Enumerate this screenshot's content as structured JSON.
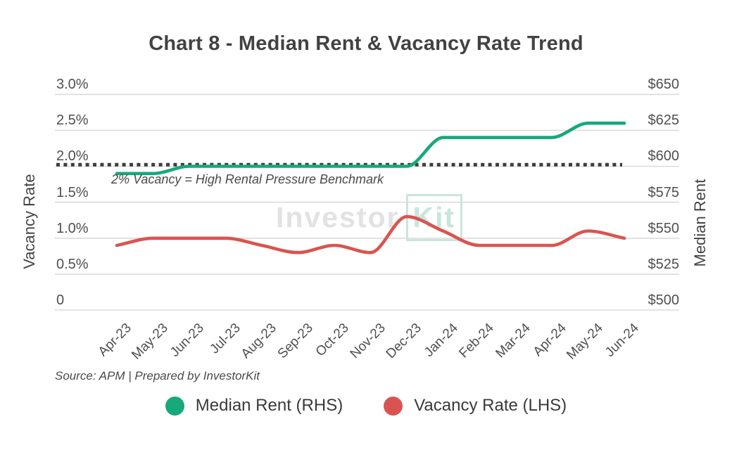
{
  "title": "Chart 8 - Median Rent & Vacancy Rate Trend",
  "watermark": {
    "part1": "Investor",
    "part2": "Kit"
  },
  "annotation": "2% Vacancy = High Rental Pressure Benchmark",
  "source": "Source: APM | Prepared by InvestorKit",
  "axes": {
    "left_title": "Vacancy Rate",
    "right_title": "Median Rent",
    "left_ticks": [
      "3.0%",
      "2.5%",
      "2.0%",
      "1.5%",
      "1.0%",
      "0.5%",
      "0"
    ],
    "right_ticks": [
      "$650",
      "$625",
      "$600",
      "$575",
      "$550",
      "$525",
      "$500"
    ]
  },
  "legend": [
    {
      "label": "Median Rent (RHS)",
      "color": "#17a87c"
    },
    {
      "label": "Vacancy Rate (LHS)",
      "color": "#d95450"
    }
  ],
  "colors": {
    "rent_line": "#17a87c",
    "vacancy_line": "#d95450",
    "benchmark_line": "#3d3d3d",
    "gridline": "#dbdbdb"
  },
  "chart_data": {
    "type": "line",
    "categories": [
      "Apr-23",
      "May-23",
      "Jun-23",
      "Jul-23",
      "Aug-23",
      "Sep-23",
      "Oct-23",
      "Nov-23",
      "Dec-23",
      "Jan-24",
      "Feb-24",
      "Mar-24",
      "Apr-24",
      "May-24",
      "Jun-24"
    ],
    "series": [
      {
        "name": "Median Rent (RHS)",
        "axis": "right",
        "color": "#17a87c",
        "values": [
          595,
          595,
          600,
          600,
          600,
          600,
          600,
          600,
          600,
          620,
          620,
          620,
          620,
          630,
          630
        ]
      },
      {
        "name": "Vacancy Rate (LHS)",
        "axis": "left",
        "color": "#d95450",
        "values": [
          0.9,
          1.0,
          1.0,
          1.0,
          0.9,
          0.8,
          0.9,
          0.8,
          1.3,
          1.1,
          0.9,
          0.9,
          0.9,
          1.1,
          1.0
        ]
      }
    ],
    "left_axis": {
      "label": "Vacancy Rate",
      "min": 0,
      "max": 3.0,
      "tick_step": 0.5,
      "unit": "%"
    },
    "right_axis": {
      "label": "Median Rent",
      "min": 500,
      "max": 650,
      "tick_step": 25,
      "unit": "$"
    },
    "benchmark_line": {
      "axis": "left",
      "value": 2.0,
      "style": "dotted",
      "label": "2% Vacancy = High Rental Pressure Benchmark"
    },
    "grid": true,
    "legend_position": "bottom",
    "smoothing": "monotone"
  }
}
